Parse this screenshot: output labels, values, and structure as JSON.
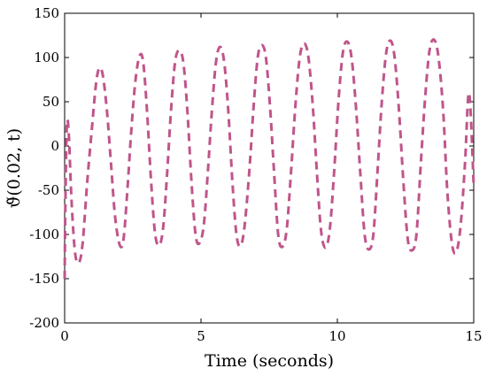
{
  "chart_data": {
    "type": "line",
    "title": "",
    "xlabel": "Time (seconds)",
    "ylabel": "ϑ̃(0.02, t)",
    "xlim": [
      0,
      15
    ],
    "ylim": [
      -200,
      150
    ],
    "xticks": [
      0,
      5,
      10,
      15
    ],
    "yticks": [
      -200,
      -150,
      -100,
      -50,
      0,
      50,
      100,
      150
    ],
    "grid": false,
    "legend": "none",
    "series": [
      {
        "color": "#c0558a",
        "line_style": "dashed",
        "x": [
          0,
          0.03,
          0.08,
          0.15,
          0.25,
          0.38,
          0.52,
          0.66,
          0.83,
          1.0,
          1.15,
          1.27,
          1.4,
          1.55,
          1.7,
          1.85,
          2.02,
          2.16,
          2.3,
          2.45,
          2.6,
          2.75,
          2.88,
          3.02,
          3.17,
          3.32,
          3.48,
          3.62,
          3.76,
          3.9,
          4.05,
          4.2,
          4.35,
          4.5,
          4.65,
          4.8,
          4.94,
          5.1,
          5.25,
          5.4,
          5.55,
          5.7,
          5.85,
          6.0,
          6.15,
          6.3,
          6.45,
          6.6,
          6.78,
          6.93,
          7.08,
          7.23,
          7.38,
          7.53,
          7.68,
          7.83,
          7.98,
          8.14,
          8.3,
          8.46,
          8.62,
          8.78,
          8.94,
          9.1,
          9.25,
          9.4,
          9.56,
          9.72,
          9.88,
          10.04,
          10.2,
          10.36,
          10.52,
          10.68,
          10.84,
          11.0,
          11.16,
          11.32,
          11.47,
          11.63,
          11.79,
          11.95,
          12.1,
          12.26,
          12.42,
          12.58,
          12.74,
          12.9,
          13.06,
          13.22,
          13.38,
          13.55,
          13.71,
          13.88,
          14.03,
          14.2,
          14.36,
          14.52,
          14.68,
          14.83,
          15.0
        ],
        "y": [
          -150,
          -60,
          23,
          15,
          -60,
          -120,
          -132,
          -110,
          -40,
          20,
          70,
          88,
          80,
          40,
          -20,
          -80,
          -112,
          -105,
          -50,
          20,
          75,
          102,
          95,
          40,
          -40,
          -100,
          -112,
          -90,
          -30,
          40,
          95,
          108,
          95,
          40,
          -40,
          -100,
          -110,
          -90,
          -30,
          40,
          95,
          112,
          95,
          40,
          -40,
          -100,
          -113,
          -90,
          -25,
          45,
          100,
          114,
          100,
          45,
          -30,
          -100,
          -114,
          -95,
          -30,
          45,
          100,
          116,
          100,
          45,
          -30,
          -95,
          -115,
          -95,
          -30,
          50,
          105,
          118,
          100,
          45,
          -30,
          -100,
          -117,
          -100,
          -30,
          50,
          105,
          119,
          100,
          40,
          -40,
          -105,
          -118,
          -100,
          -20,
          55,
          108,
          120,
          100,
          40,
          -50,
          -110,
          -120,
          -90,
          -20,
          60,
          -45
        ]
      }
    ]
  }
}
